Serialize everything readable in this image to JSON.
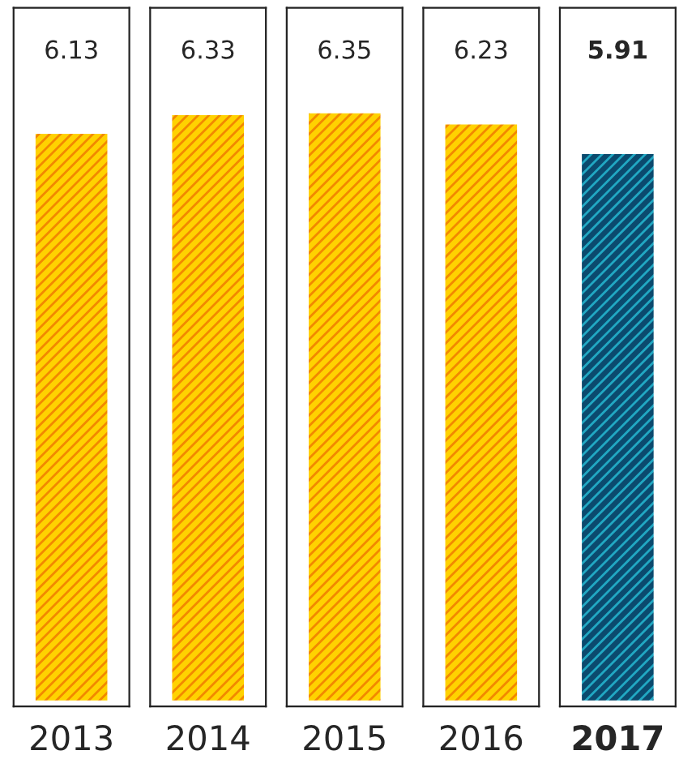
{
  "chart_data": {
    "type": "bar",
    "categories": [
      "2013",
      "2014",
      "2015",
      "2016",
      "2017"
    ],
    "values": [
      6.13,
      6.33,
      6.35,
      6.23,
      5.91
    ],
    "colors": [
      "#ffd200",
      "#ffd200",
      "#ffd200",
      "#ffd200",
      "#0b4a6e"
    ],
    "data_labels": true
  }
}
